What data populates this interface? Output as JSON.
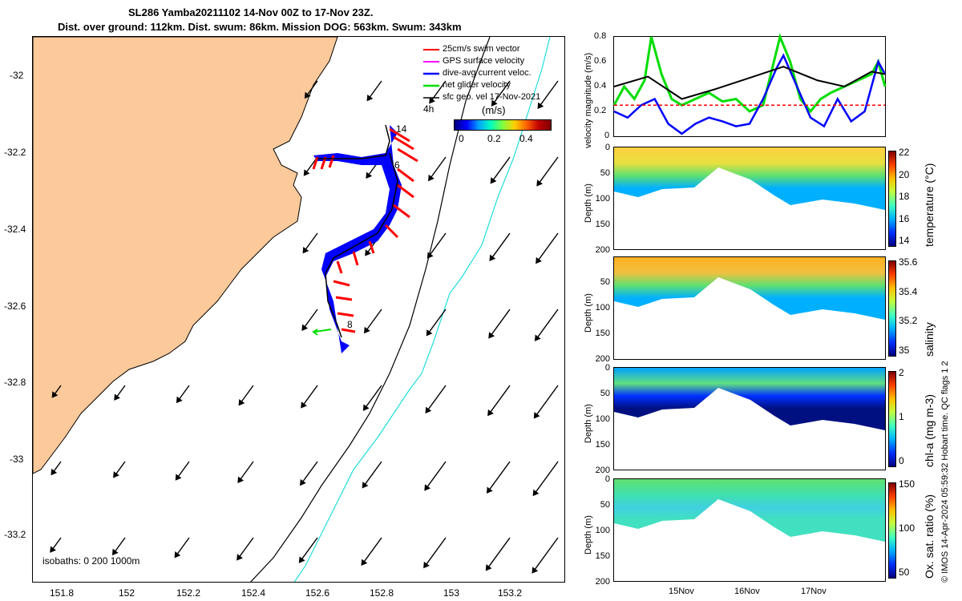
{
  "header": {
    "line1": "SL286 Yamba20211102 14-Nov 00Z to 17-Nov 23Z.",
    "line2": "Dist. over ground: 112km. Dist. swum: 86km. Mission DOG: 563km. Swum: 343km"
  },
  "credit": "© IMOS 14-Apr-2024 05:59:32 Hobart time. QC flags 1  2",
  "colors": {
    "land": "#fbc99a",
    "swim_vector": "#ff0000",
    "gps_velocity": "#ff00ff",
    "dive_avg": "#0000ff",
    "net_glider": "#00dd00",
    "sfc_geo": "#000000",
    "isobath_200": "#000000",
    "isobath_1000": "#22dddd"
  },
  "map": {
    "legend": {
      "swim": "25cm/s swim vector",
      "gps": "GPS surface velocity",
      "dive": "dive-avg current veloc.",
      "net": "net glider velocity",
      "sfc": "sfc geo. vel 17-Nov-2021",
      "interval": "4h"
    },
    "colorbar": {
      "label": "(m/s)",
      "ticks": [
        "0",
        "0.2",
        "0.4"
      ]
    },
    "yticks": [
      "-32",
      "-32.2",
      "-32.4",
      "-32.6",
      "-32.8",
      "-33",
      "-33.2"
    ],
    "xticks": [
      "151.8",
      "152",
      "152.2",
      "152.4",
      "152.6",
      "152.8",
      "153",
      "153.2"
    ],
    "isobaths": "isobaths: 0   200  1000m",
    "day_labels": [
      "14",
      "6",
      "8"
    ]
  },
  "chart_data": [
    {
      "type": "line",
      "title": "",
      "ylabel": "velocity magnitude (m/s)",
      "ylim": [
        0,
        0.8
      ],
      "yticks": [
        "0",
        "0.2",
        "0.4",
        "0.6",
        "0.8"
      ],
      "xlim_days": [
        14,
        18
      ],
      "series": [
        {
          "name": "net glider velocity",
          "x": [
            14.0,
            14.15,
            14.3,
            14.45,
            14.55,
            14.7,
            14.85,
            15.0,
            15.2,
            15.4,
            15.6,
            15.8,
            16.0,
            16.2,
            16.45,
            16.6,
            16.75,
            16.9,
            17.05,
            17.2,
            17.4,
            17.6,
            17.8,
            17.9,
            18.0
          ],
          "values": [
            0.25,
            0.4,
            0.3,
            0.45,
            0.8,
            0.5,
            0.3,
            0.25,
            0.3,
            0.35,
            0.28,
            0.3,
            0.2,
            0.25,
            0.8,
            0.6,
            0.3,
            0.2,
            0.3,
            0.35,
            0.4,
            0.45,
            0.5,
            0.6,
            0.4
          ]
        },
        {
          "name": "dive-avg current veloc.",
          "x": [
            14.0,
            14.2,
            14.4,
            14.6,
            14.8,
            15.0,
            15.2,
            15.4,
            15.6,
            15.8,
            16.0,
            16.2,
            16.4,
            16.5,
            16.7,
            16.9,
            17.1,
            17.3,
            17.5,
            17.7,
            17.9,
            18.0
          ],
          "values": [
            0.2,
            0.15,
            0.25,
            0.3,
            0.1,
            0.02,
            0.1,
            0.15,
            0.12,
            0.08,
            0.1,
            0.3,
            0.55,
            0.65,
            0.4,
            0.15,
            0.08,
            0.3,
            0.12,
            0.2,
            0.6,
            0.5
          ]
        },
        {
          "name": "sfc geo. vel",
          "x": [
            14.0,
            14.5,
            15.0,
            15.5,
            16.0,
            16.5,
            17.0,
            17.4,
            17.8,
            18.0
          ],
          "values": [
            0.4,
            0.48,
            0.3,
            0.38,
            0.47,
            0.56,
            0.45,
            0.4,
            0.52,
            0.5
          ]
        },
        {
          "name": "25cm/s swim",
          "x": [
            14.0,
            18.0
          ],
          "values": [
            0.25,
            0.25
          ]
        }
      ]
    },
    {
      "type": "heatmap",
      "ylabel": "Depth (m)",
      "cblabel": "temperature (°C)",
      "yticks": [
        "0",
        "50",
        "100",
        "150",
        "200"
      ],
      "cbticks": [
        "22",
        "20",
        "18",
        "16",
        "14"
      ],
      "ylim": [
        200,
        0
      ]
    },
    {
      "type": "heatmap",
      "ylabel": "Depth (m)",
      "cblabel": "salinity",
      "yticks": [
        "50",
        "100",
        "150",
        "200"
      ],
      "cbticks": [
        "35.6",
        "35.4",
        "35.2",
        "35"
      ],
      "ylim": [
        200,
        0
      ]
    },
    {
      "type": "heatmap",
      "ylabel": "Depth (m)",
      "cblabel": "chl-a (mg m-3)",
      "yticks": [
        "0",
        "50",
        "100",
        "150",
        "200"
      ],
      "cbticks": [
        "2",
        "1",
        "0"
      ],
      "ylim": [
        200,
        0
      ]
    },
    {
      "type": "heatmap",
      "ylabel": "Depth (m)",
      "cblabel": "Ox. sat. ratio (%)",
      "yticks": [
        "0",
        "50",
        "100",
        "150",
        "200"
      ],
      "cbticks": [
        "150",
        "100",
        "50"
      ],
      "ylim": [
        200,
        0
      ],
      "xticks": [
        "15Nov",
        "16Nov",
        "17Nov"
      ]
    }
  ]
}
